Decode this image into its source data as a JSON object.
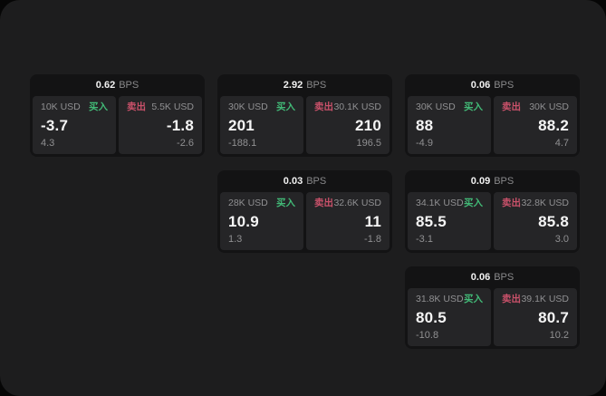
{
  "window": {
    "background": "#1d1d1e",
    "outer_background": "#060606"
  },
  "labels": {
    "buy": "买入",
    "sell": "卖出",
    "bps_unit": "BPS"
  },
  "colors": {
    "buy_accent": "#42ba77",
    "sell_accent": "#c9516a",
    "value_text": "#f5f5f5",
    "muted_text": "#909092",
    "card_background": "#131314",
    "panel_background": "#252527"
  },
  "cards": [
    {
      "row": 1,
      "col": 1,
      "bps": "0.62",
      "buy": {
        "size": "10K USD",
        "value": "-3.7",
        "delta": "4.3"
      },
      "sell": {
        "size": "5.5K USD",
        "value": "-1.8",
        "delta": "-2.6"
      }
    },
    {
      "row": 1,
      "col": 2,
      "bps": "2.92",
      "buy": {
        "size": "30K USD",
        "value": "201",
        "delta": "-188.1"
      },
      "sell": {
        "size": "30.1K USD",
        "value": "210",
        "delta": "196.5"
      }
    },
    {
      "row": 1,
      "col": 3,
      "bps": "0.06",
      "buy": {
        "size": "30K USD",
        "value": "88",
        "delta": "-4.9"
      },
      "sell": {
        "size": "30K USD",
        "value": "88.2",
        "delta": "4.7"
      }
    },
    {
      "row": 2,
      "col": 2,
      "bps": "0.03",
      "buy": {
        "size": "28K USD",
        "value": "10.9",
        "delta": "1.3"
      },
      "sell": {
        "size": "32.6K USD",
        "value": "11",
        "delta": "-1.8"
      }
    },
    {
      "row": 2,
      "col": 3,
      "bps": "0.09",
      "buy": {
        "size": "34.1K USD",
        "value": "85.5",
        "delta": "-3.1"
      },
      "sell": {
        "size": "32.8K USD",
        "value": "85.8",
        "delta": "3.0"
      }
    },
    {
      "row": 3,
      "col": 3,
      "bps": "0.06",
      "buy": {
        "size": "31.8K USD",
        "value": "80.5",
        "delta": "-10.8"
      },
      "sell": {
        "size": "39.1K USD",
        "value": "80.7",
        "delta": "10.2"
      }
    }
  ]
}
